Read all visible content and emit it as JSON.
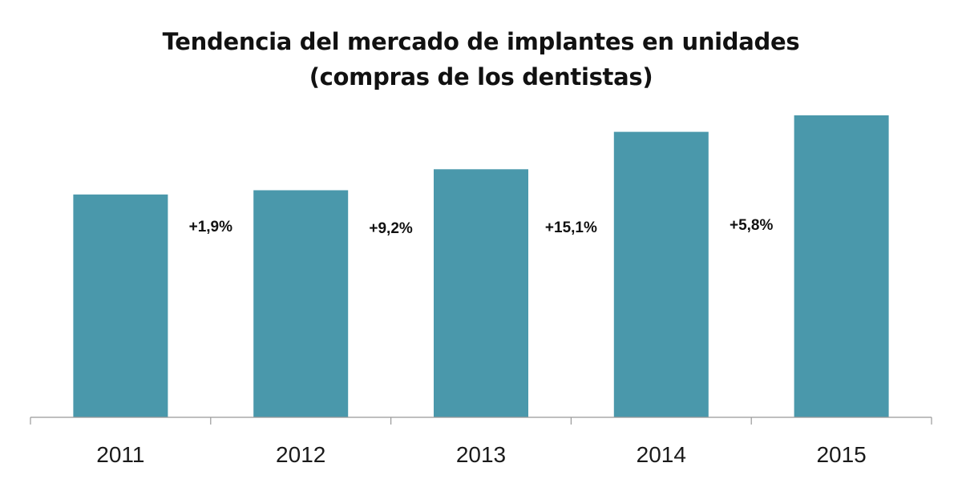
{
  "chart_data": {
    "type": "bar",
    "title": "Tendencia del mercado de implantes en unidades",
    "subtitle": "(compras de los dentistas)",
    "categories": [
      "2011",
      "2012",
      "2013",
      "2014",
      "2015"
    ],
    "values": [
      100,
      101.9,
      111.3,
      128.1,
      135.5
    ],
    "annotations": [
      "+1,9%",
      "+9,2%",
      "+15,1%",
      "+5,8%"
    ],
    "bar_color": "#4a98ab",
    "axis_color": "#999999",
    "ylim": [
      0,
      135.5
    ],
    "grid": false,
    "legend": "none"
  }
}
